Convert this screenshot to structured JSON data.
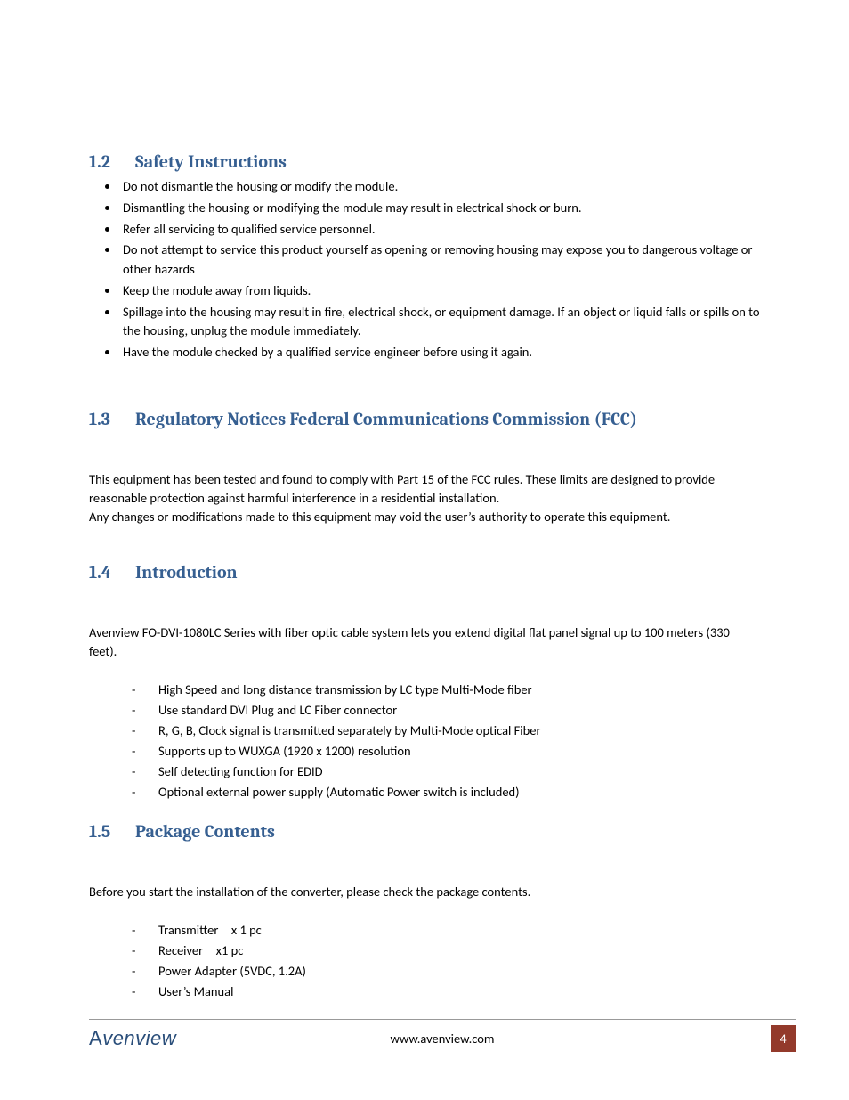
{
  "colors": {
    "heading": "#365f91",
    "text": "#000000",
    "footer_rule": "#999999",
    "page_box_bg": "#933a2b",
    "page_box_fg": "#ffffff",
    "logo": "#2a4e7a",
    "background": "#ffffff"
  },
  "typography": {
    "heading_font": "Cambria, Georgia, serif",
    "body_font": "Calibri, Segoe UI, Arial, sans-serif",
    "heading_size_pt": 15,
    "body_size_pt": 11
  },
  "sections": {
    "s12": {
      "num": "1.2",
      "title": "Safety Instructions",
      "bullets": [
        "Do not dismantle the housing or modify the module.",
        "Dismantling the housing or modifying the module may result in electrical shock or burn.",
        "Refer all servicing to qualified service personnel.",
        "Do not attempt to service this product yourself as opening or removing housing may expose you to dangerous voltage or other hazards",
        "Keep the module away from liquids.",
        "Spillage into the housing may result in fire, electrical shock, or equipment damage. If an object or liquid falls or spills on to the housing, unplug the module immediately.",
        "Have the module checked by a qualified service engineer before using it again."
      ]
    },
    "s13": {
      "num": "1.3",
      "title": "Regulatory Notices Federal Communications Commission (FCC)",
      "para1": "This equipment has been tested and found to comply with Part 15 of the FCC rules. These limits are designed to provide reasonable protection against harmful interference in a residential installation.",
      "para2": "Any changes or modifications made to this equipment may void the user’s authority to operate this equipment."
    },
    "s14": {
      "num": "1.4",
      "title": "Introduction",
      "para": "Avenview FO-DVI-1080LC Series with fiber optic cable system lets you extend digital flat panel signal up to 100 meters (330 feet).",
      "items": [
        "High Speed and long distance transmission by LC type Multi-Mode fiber",
        "Use standard DVI Plug and LC Fiber connector",
        "R, G, B, Clock signal is transmitted separately by Multi-Mode optical Fiber",
        "Supports up to WUXGA (1920 x 1200) resolution",
        "Self detecting function for EDID",
        "Optional external power supply (Automatic Power switch is included)"
      ]
    },
    "s15": {
      "num": "1.5",
      "title": "Package Contents",
      "para": "Before you start the installation of the converter, please check the package contents.",
      "items": [
        "Transmitter x 1 pc",
        "Receiver x1 pc",
        "Power Adapter (5VDC, 1.2A)",
        "User’s Manual"
      ]
    }
  },
  "footer": {
    "logo_text": "Avenview",
    "url": "www.avenview.com",
    "page_number": "4"
  }
}
